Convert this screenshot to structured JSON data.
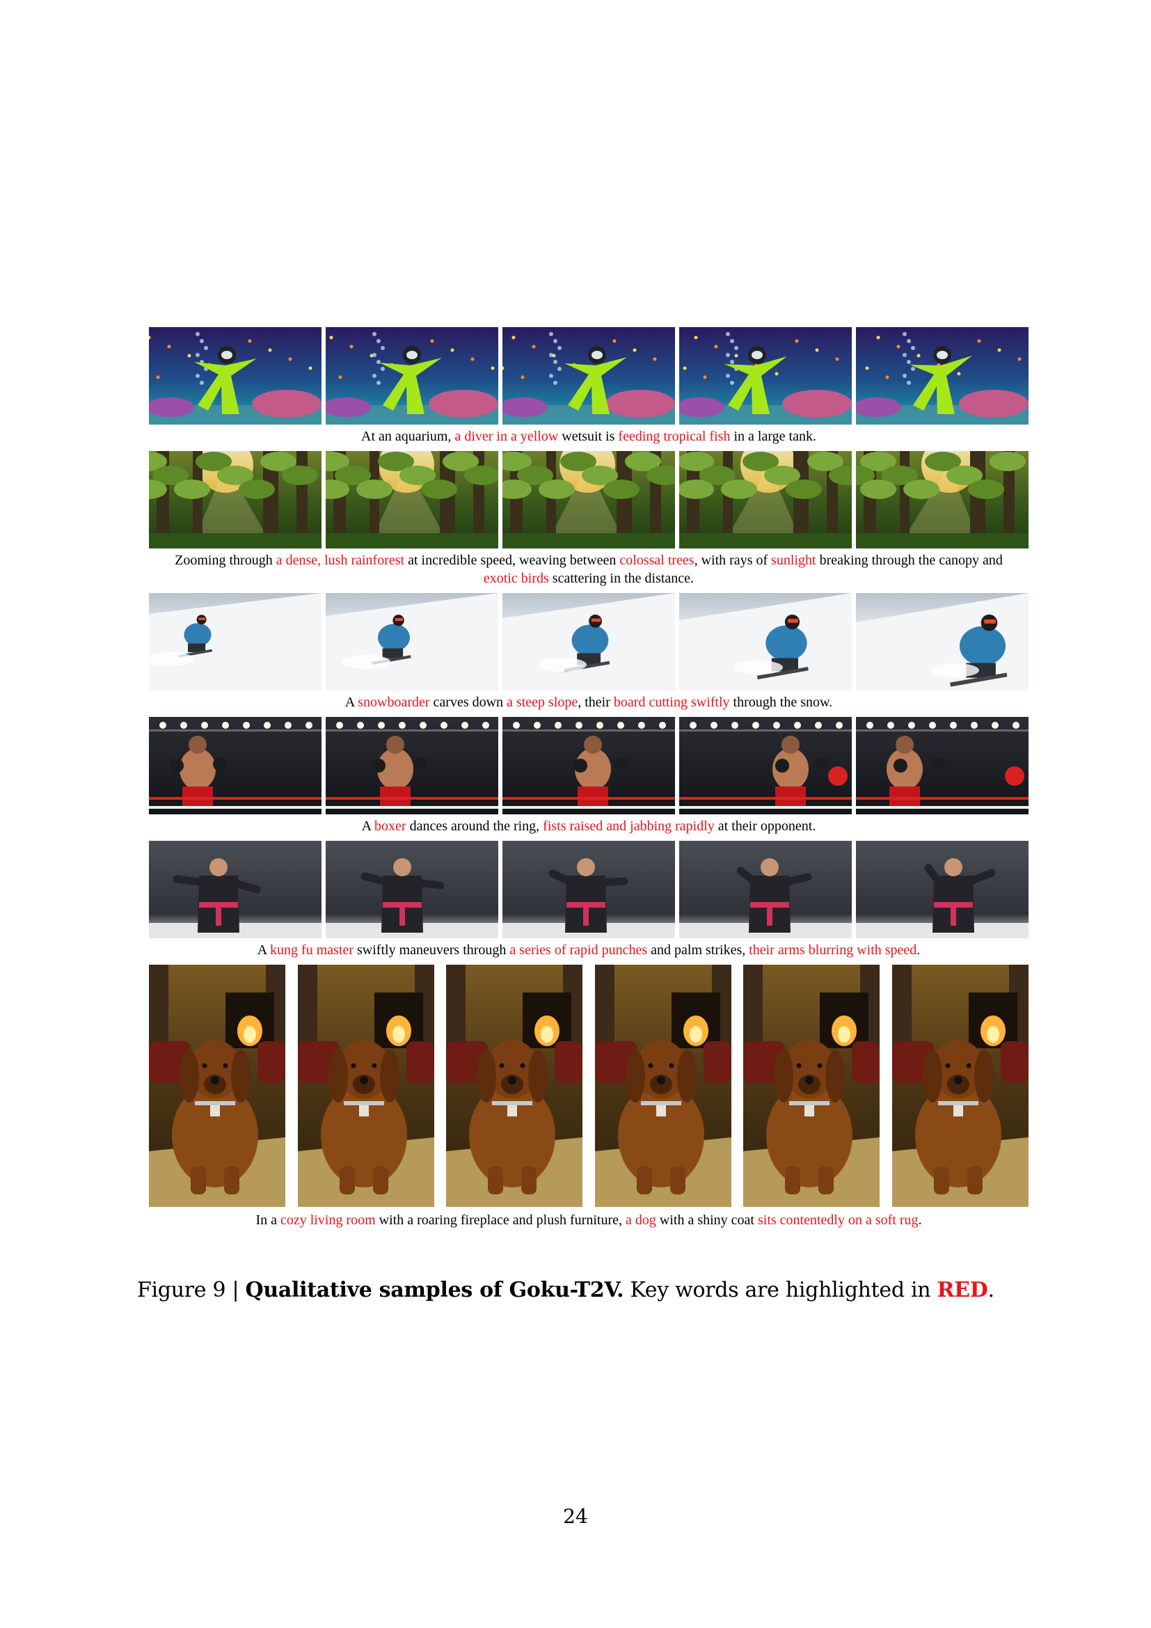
{
  "figure": {
    "rows": [
      {
        "theme": "aquarium",
        "caption": [
          {
            "t": "At an aquarium, ",
            "hl": false
          },
          {
            "t": "a diver in a yellow",
            "hl": true
          },
          {
            "t": " wetsuit is ",
            "hl": false
          },
          {
            "t": "feeding tropical fish",
            "hl": true
          },
          {
            "t": " in a large tank.",
            "hl": false
          }
        ]
      },
      {
        "theme": "rainforest",
        "caption": [
          {
            "t": "Zooming through ",
            "hl": false
          },
          {
            "t": "a dense, lush rainforest",
            "hl": true
          },
          {
            "t": " at incredible speed, weaving between ",
            "hl": false
          },
          {
            "t": "colossal trees",
            "hl": true
          },
          {
            "t": ", with rays of ",
            "hl": false
          },
          {
            "t": "sunlight",
            "hl": true
          },
          {
            "t": " breaking through the canopy and ",
            "hl": false
          },
          {
            "t": "exotic birds",
            "hl": true
          },
          {
            "t": " scattering in the distance.",
            "hl": false
          }
        ]
      },
      {
        "theme": "snow",
        "caption": [
          {
            "t": "A ",
            "hl": false
          },
          {
            "t": "snowboarder",
            "hl": true
          },
          {
            "t": " carves down ",
            "hl": false
          },
          {
            "t": "a steep slope",
            "hl": true
          },
          {
            "t": ", their ",
            "hl": false
          },
          {
            "t": "board cutting swiftly",
            "hl": true
          },
          {
            "t": " through the snow.",
            "hl": false
          }
        ]
      },
      {
        "theme": "boxing",
        "caption": [
          {
            "t": "A ",
            "hl": false
          },
          {
            "t": "boxer",
            "hl": true
          },
          {
            "t": " dances around the ring, ",
            "hl": false
          },
          {
            "t": "fists raised and jabbing rapidly",
            "hl": true
          },
          {
            "t": " at their opponent.",
            "hl": false
          }
        ]
      },
      {
        "theme": "kungfu",
        "caption": [
          {
            "t": "A ",
            "hl": false
          },
          {
            "t": "kung fu master",
            "hl": true
          },
          {
            "t": " swiftly maneuvers through ",
            "hl": false
          },
          {
            "t": "a series of rapid punches",
            "hl": true
          },
          {
            "t": " and palm strikes, ",
            "hl": false
          },
          {
            "t": "their arms blurring with speed",
            "hl": true
          },
          {
            "t": ".",
            "hl": false
          }
        ]
      },
      {
        "theme": "dog",
        "caption": [
          {
            "t": "In a ",
            "hl": false
          },
          {
            "t": "cozy living room",
            "hl": true
          },
          {
            "t": " with a roaring fireplace and plush furniture, ",
            "hl": false
          },
          {
            "t": "a dog",
            "hl": true
          },
          {
            "t": " with a shiny coat ",
            "hl": false
          },
          {
            "t": "sits contentedly on a soft rug",
            "hl": true
          },
          {
            "t": ".",
            "hl": false
          }
        ]
      }
    ],
    "title": {
      "prefix": "Figure 9 | ",
      "bold": "Qualitative samples of Goku-T2V.",
      "middle": " Key words are highlighted in ",
      "red": "RED",
      "suffix": "."
    }
  },
  "page_number": "24"
}
